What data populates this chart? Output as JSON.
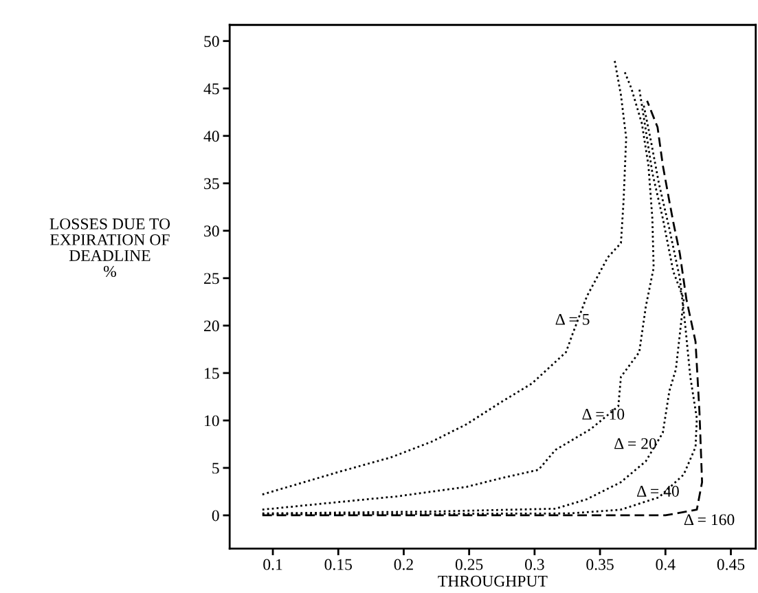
{
  "chart_data": {
    "type": "line",
    "xlabel": "THROUGHPUT",
    "ylabel": "LOSSES DUE TO\nEXPIRATION OF\nDEADLINE\n%",
    "xlim": [
      0.067,
      0.469
    ],
    "ylim": [
      -3.5,
      51.7
    ],
    "xticks": [
      0.1,
      0.15,
      0.2,
      0.25,
      0.3,
      0.35,
      0.4,
      0.45
    ],
    "yticks": [
      0,
      5,
      10,
      15,
      20,
      25,
      30,
      35,
      40,
      45,
      50
    ],
    "grid": false,
    "legend": false,
    "marker": "none",
    "series": [
      {
        "name": "Δ = 5",
        "color": "#000000",
        "line_style": "dotted",
        "x": [
          0.092,
          0.124,
          0.151,
          0.19,
          0.222,
          0.248,
          0.274,
          0.298,
          0.324,
          0.329,
          0.34,
          0.356,
          0.366,
          0.368,
          0.37,
          0.366,
          0.361
        ],
        "values": [
          2.2,
          3.5,
          4.6,
          6.1,
          7.8,
          9.6,
          11.9,
          13.9,
          17.2,
          19.1,
          23.1,
          27.2,
          28.7,
          33.1,
          39.8,
          44.3,
          48.1
        ]
      },
      {
        "name": "Δ = 10",
        "color": "#000000",
        "line_style": "dotted",
        "x": [
          0.092,
          0.143,
          0.195,
          0.248,
          0.274,
          0.303,
          0.316,
          0.343,
          0.364,
          0.366,
          0.38,
          0.385,
          0.391,
          0.39,
          0.387,
          0.382,
          0.374,
          0.369
        ],
        "values": [
          0.6,
          1.3,
          2.0,
          3.0,
          3.9,
          4.8,
          6.9,
          9.1,
          11.5,
          14.6,
          17.2,
          22.0,
          26.1,
          31.3,
          36.9,
          41.3,
          45.0,
          46.7
        ]
      },
      {
        "name": "Δ = 20",
        "color": "#000000",
        "line_style": "dotted",
        "x": [
          0.092,
          0.222,
          0.316,
          0.34,
          0.366,
          0.385,
          0.398,
          0.403,
          0.408,
          0.411,
          0.414,
          0.406,
          0.398,
          0.39,
          0.385,
          0.38
        ],
        "values": [
          0.2,
          0.4,
          0.7,
          1.7,
          3.5,
          5.7,
          8.7,
          13.1,
          15.4,
          19.1,
          22.8,
          25.7,
          31.3,
          36.1,
          40.6,
          45.0
        ]
      },
      {
        "name": "Δ = 40",
        "color": "#000000",
        "line_style": "dotted",
        "x": [
          0.092,
          0.327,
          0.366,
          0.395,
          0.414,
          0.423,
          0.424,
          0.419,
          0.415,
          0.411,
          0.403,
          0.395,
          0.389,
          0.383
        ],
        "values": [
          0.1,
          0.2,
          0.6,
          1.9,
          4.3,
          7.2,
          10.2,
          14.6,
          20.2,
          25.0,
          30.2,
          35.0,
          39.4,
          43.5
        ]
      },
      {
        "name": "Δ = 160",
        "color": "#000000",
        "line_style": "dashed",
        "x": [
          0.092,
          0.4,
          0.424,
          0.428,
          0.426,
          0.423,
          0.416,
          0.411,
          0.406,
          0.403,
          0.398,
          0.394,
          0.386
        ],
        "values": [
          0,
          0,
          0.6,
          3.5,
          10.9,
          18.3,
          22.8,
          27.6,
          30.9,
          33.1,
          36.9,
          40.9,
          43.7
        ]
      }
    ]
  }
}
